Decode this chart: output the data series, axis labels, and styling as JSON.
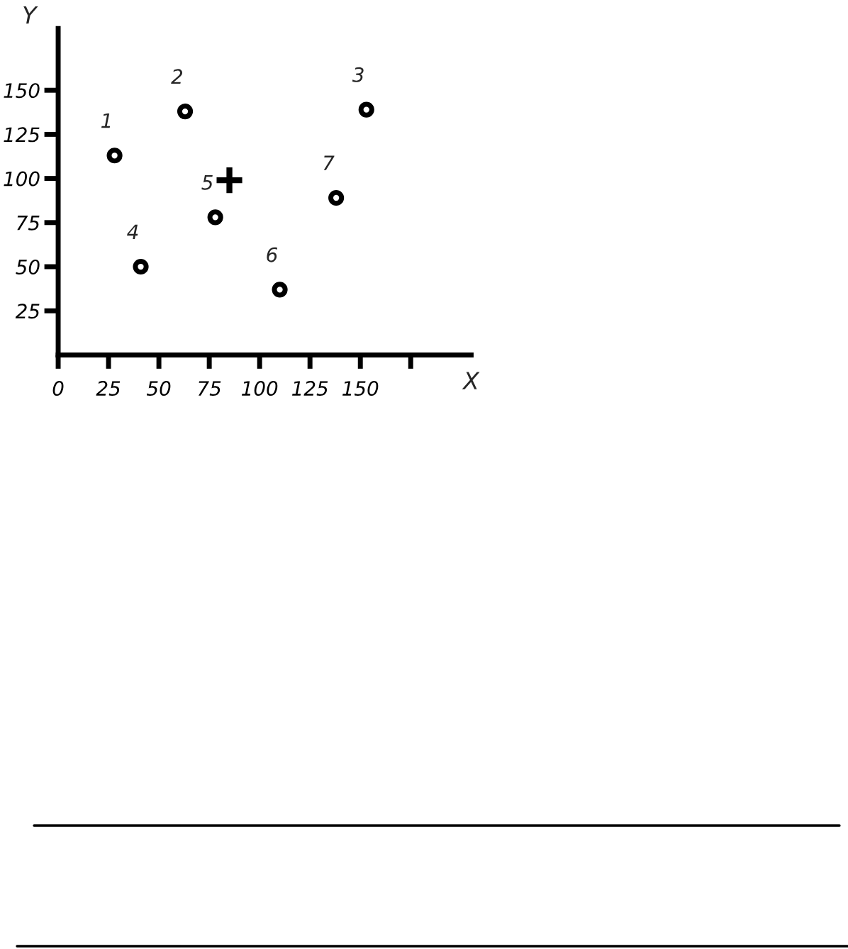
{
  "chart_data": {
    "type": "scatter",
    "xlabel": "X",
    "ylabel": "Y",
    "series": [
      {
        "color": "#000000",
        "marker": "circle",
        "x": [
          28,
          63,
          153,
          41,
          78,
          110,
          138
        ],
        "values": [
          113,
          138,
          139,
          50,
          78,
          37,
          89
        ]
      },
      {
        "color": "#000000",
        "marker": "cross",
        "x": [
          85
        ],
        "values": [
          99
        ]
      }
    ],
    "annotations": [
      {
        "text": "1",
        "x": 28,
        "y": 113
      },
      {
        "text": "2",
        "x": 63,
        "y": 138
      },
      {
        "text": "3",
        "x": 153,
        "y": 139
      },
      {
        "text": "4",
        "x": 41,
        "y": 50
      },
      {
        "text": "5",
        "x": 78,
        "y": 78
      },
      {
        "text": "6",
        "x": 110,
        "y": 37
      },
      {
        "text": "7",
        "x": 138,
        "y": 89
      }
    ],
    "xlim": [
      0,
      205
    ],
    "ylim": [
      0,
      185
    ],
    "xticks": [
      0,
      25,
      50,
      75,
      100,
      125,
      150,
      {
        "value": 175,
        "label": null
      }
    ],
    "yticks": [
      25,
      50,
      75,
      100,
      125,
      150
    ],
    "grid": false,
    "legend": false
  }
}
